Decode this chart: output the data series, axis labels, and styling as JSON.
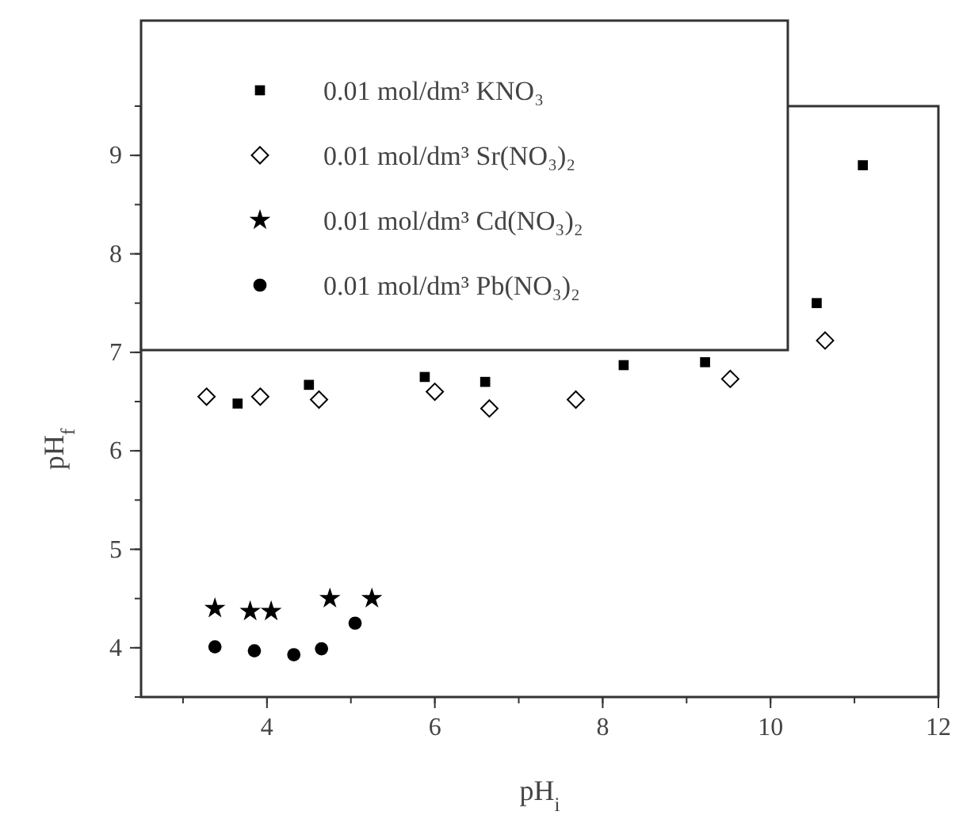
{
  "chart_data": {
    "type": "scatter",
    "xlabel": "pH$_{i}$",
    "ylabel": "pH$_{f}$",
    "xlim": [
      2.5,
      12
    ],
    "ylim": [
      3.5,
      9.5
    ],
    "xticks": [
      4,
      6,
      8,
      10,
      12
    ],
    "yticks": [
      4,
      5,
      6,
      7,
      8,
      9
    ],
    "grid": false,
    "legend": "top left",
    "series": [
      {
        "name": "0.01 mol/dm³ KNO₃",
        "color": "#000000",
        "marker": "square",
        "x": [
          3.65,
          4.5,
          5.88,
          6.6,
          8.25,
          9.22,
          10.55,
          11.1
        ],
        "values": [
          6.48,
          6.67,
          6.75,
          6.7,
          6.87,
          6.9,
          7.5,
          8.9
        ]
      },
      {
        "name": "0.01 mol/dm³ Sr(NO₃)₂",
        "color": "#000000",
        "marker": "diamond",
        "x": [
          3.28,
          3.92,
          4.62,
          6.0,
          6.65,
          7.68,
          9.52,
          10.65
        ],
        "values": [
          6.55,
          6.55,
          6.52,
          6.6,
          6.43,
          6.52,
          6.73,
          7.12
        ]
      },
      {
        "name": "0.01 mol/dm³ Cd(NO₃)₂",
        "color": "#000000",
        "marker": "star",
        "x": [
          3.38,
          3.8,
          4.05,
          4.75,
          5.25
        ],
        "values": [
          4.4,
          4.37,
          4.37,
          4.5,
          4.5
        ]
      },
      {
        "name": "0.01 mol/dm³ Pb(NO₃)₂",
        "color": "#000000",
        "marker": "circle",
        "x": [
          3.38,
          3.85,
          4.32,
          4.65,
          5.05
        ],
        "values": [
          4.01,
          3.97,
          3.93,
          3.99,
          4.25
        ]
      }
    ]
  }
}
